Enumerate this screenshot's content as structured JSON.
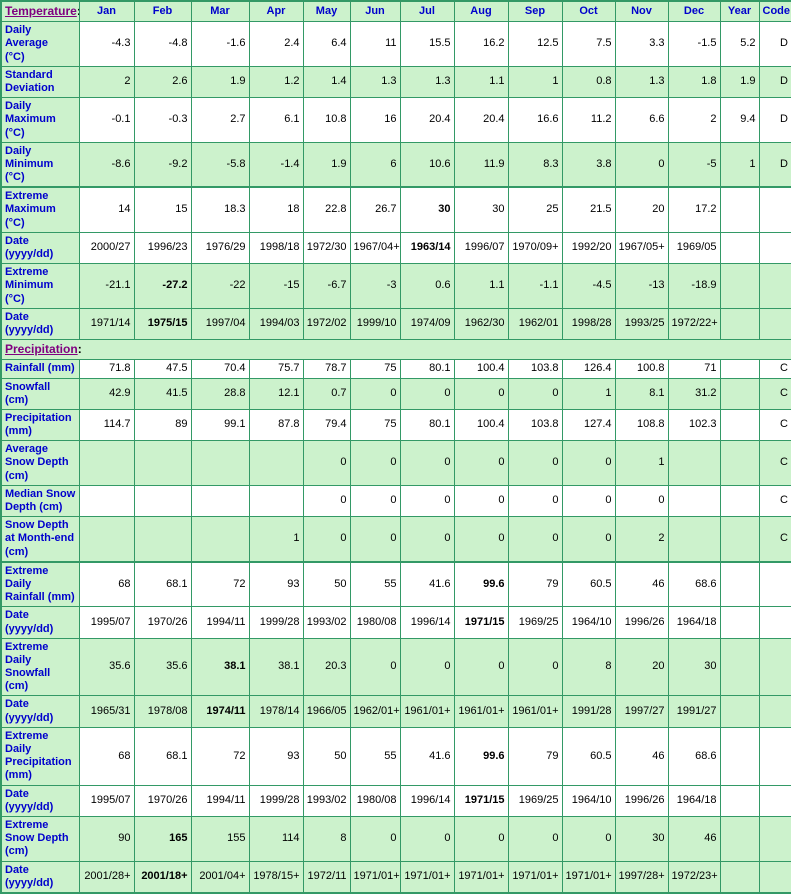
{
  "colors": {
    "table_border_green": "#339966",
    "row_green": "#ccf2cc",
    "label_blue": "#0000cc",
    "section_purple": "#800080",
    "data_text": "#000000"
  },
  "table": {
    "temperature_section_label": "Temperature",
    "precipitation_section_label": "Precipitation",
    "section_colon": ":",
    "month_headers": [
      "Jan",
      "Feb",
      "Mar",
      "Apr",
      "May",
      "Jun",
      "Jul",
      "Aug",
      "Sep",
      "Oct",
      "Nov",
      "Dec"
    ],
    "year_header": "Year",
    "code_header": "Code",
    "rows": [
      {
        "id": "daily-average",
        "label": "Daily Average\n(°C)",
        "bg": "w",
        "bold": -1,
        "thick": false,
        "values": [
          "-4.3",
          "-4.8",
          "-1.6",
          "2.4",
          "6.4",
          "11",
          "15.5",
          "16.2",
          "12.5",
          "7.5",
          "3.3",
          "-1.5",
          "5.2",
          "D"
        ]
      },
      {
        "id": "standard-deviation",
        "label": "Standard\nDeviation",
        "bg": "g",
        "bold": -1,
        "thick": false,
        "values": [
          "2",
          "2.6",
          "1.9",
          "1.2",
          "1.4",
          "1.3",
          "1.3",
          "1.1",
          "1",
          "0.8",
          "1.3",
          "1.8",
          "1.9",
          "D"
        ]
      },
      {
        "id": "daily-maximum",
        "label": "Daily\nMaximum\n(°C)",
        "bg": "w",
        "bold": -1,
        "thick": false,
        "values": [
          "-0.1",
          "-0.3",
          "2.7",
          "6.1",
          "10.8",
          "16",
          "20.4",
          "20.4",
          "16.6",
          "11.2",
          "6.6",
          "2",
          "9.4",
          "D"
        ]
      },
      {
        "id": "daily-minimum",
        "label": "Daily\nMinimum\n(°C)",
        "bg": "g",
        "bold": -1,
        "thick": false,
        "values": [
          "-8.6",
          "-9.2",
          "-5.8",
          "-1.4",
          "1.9",
          "6",
          "10.6",
          "11.9",
          "8.3",
          "3.8",
          "0",
          "-5",
          "1",
          "D"
        ]
      },
      {
        "id": "extreme-maximum",
        "label": "Extreme\nMaximum\n(°C)",
        "bg": "w",
        "bold": 6,
        "thick": true,
        "values": [
          "14",
          "15",
          "18.3",
          "18",
          "22.8",
          "26.7",
          "30",
          "30",
          "25",
          "21.5",
          "20",
          "17.2",
          "",
          ""
        ]
      },
      {
        "id": "extreme-maximum-date",
        "label": "Date\n(yyyy/dd)",
        "bg": "w",
        "bold": 6,
        "thick": false,
        "values": [
          "2000/27",
          "1996/23",
          "1976/29",
          "1998/18",
          "1972/30",
          "1967/04+",
          "1963/14",
          "1996/07",
          "1970/09+",
          "1992/20",
          "1967/05+",
          "1969/05",
          "",
          ""
        ]
      },
      {
        "id": "extreme-minimum",
        "label": "Extreme\nMinimum\n(°C)",
        "bg": "g",
        "bold": 1,
        "thick": false,
        "values": [
          "-21.1",
          "-27.2",
          "-22",
          "-15",
          "-6.7",
          "-3",
          "0.6",
          "1.1",
          "-1.1",
          "-4.5",
          "-13",
          "-18.9",
          "",
          ""
        ]
      },
      {
        "id": "extreme-minimum-date",
        "label": "Date\n(yyyy/dd)",
        "bg": "g",
        "bold": 1,
        "thick": false,
        "values": [
          "1971/14",
          "1975/15",
          "1997/04",
          "1994/03",
          "1972/02",
          "1999/10",
          "1974/09",
          "1962/30",
          "1962/01",
          "1998/28",
          "1993/25",
          "1972/22+",
          "",
          ""
        ]
      },
      {
        "id": "precipitation-section",
        "type": "section"
      },
      {
        "id": "rainfall",
        "label": "Rainfall (mm)",
        "bg": "w",
        "bold": -1,
        "thick": false,
        "values": [
          "71.8",
          "47.5",
          "70.4",
          "75.7",
          "78.7",
          "75",
          "80.1",
          "100.4",
          "103.8",
          "126.4",
          "100.8",
          "71",
          "",
          "C"
        ]
      },
      {
        "id": "snowfall",
        "label": "Snowfall\n(cm)",
        "bg": "g",
        "bold": -1,
        "thick": false,
        "values": [
          "42.9",
          "41.5",
          "28.8",
          "12.1",
          "0.7",
          "0",
          "0",
          "0",
          "0",
          "1",
          "8.1",
          "31.2",
          "",
          "C"
        ]
      },
      {
        "id": "precipitation",
        "label": "Precipitation\n(mm)",
        "bg": "w",
        "bold": -1,
        "thick": false,
        "values": [
          "114.7",
          "89",
          "99.1",
          "87.8",
          "79.4",
          "75",
          "80.1",
          "100.4",
          "103.8",
          "127.4",
          "108.8",
          "102.3",
          "",
          "C"
        ]
      },
      {
        "id": "average-snow-depth",
        "label": "Average\nSnow Depth\n(cm)",
        "bg": "g",
        "bold": -1,
        "thick": false,
        "values": [
          "",
          "",
          "",
          "",
          "0",
          "0",
          "0",
          "0",
          "0",
          "0",
          "1",
          "",
          "",
          "C"
        ]
      },
      {
        "id": "median-snow-depth",
        "label": "Median Snow\nDepth (cm)",
        "bg": "w",
        "bold": -1,
        "thick": false,
        "values": [
          "",
          "",
          "",
          "",
          "0",
          "0",
          "0",
          "0",
          "0",
          "0",
          "0",
          "",
          "",
          "C"
        ]
      },
      {
        "id": "snow-depth-at-month-end",
        "label": "Snow Depth\nat Month-end\n(cm)",
        "bg": "g",
        "bold": -1,
        "thick": false,
        "values": [
          "",
          "",
          "",
          "1",
          "0",
          "0",
          "0",
          "0",
          "0",
          "0",
          "2",
          "",
          "",
          "C"
        ]
      },
      {
        "id": "extreme-daily-rainfall",
        "label": "Extreme Daily\nRainfall (mm)",
        "bg": "w",
        "bold": 7,
        "thick": true,
        "values": [
          "68",
          "68.1",
          "72",
          "93",
          "50",
          "55",
          "41.6",
          "99.6",
          "79",
          "60.5",
          "46",
          "68.6",
          "",
          ""
        ]
      },
      {
        "id": "extreme-daily-rainfall-date",
        "label": "Date\n(yyyy/dd)",
        "bg": "w",
        "bold": 7,
        "thick": false,
        "values": [
          "1995/07",
          "1970/26",
          "1994/11",
          "1999/28",
          "1993/02",
          "1980/08",
          "1996/14",
          "1971/15",
          "1969/25",
          "1964/10",
          "1996/26",
          "1964/18",
          "",
          ""
        ]
      },
      {
        "id": "extreme-daily-snowfall",
        "label": "Extreme Daily\nSnowfall\n(cm)",
        "bg": "g",
        "bold": 2,
        "thick": false,
        "values": [
          "35.6",
          "35.6",
          "38.1",
          "38.1",
          "20.3",
          "0",
          "0",
          "0",
          "0",
          "8",
          "20",
          "30",
          "",
          ""
        ]
      },
      {
        "id": "extreme-daily-snowfall-date",
        "label": "Date\n(yyyy/dd)",
        "bg": "g",
        "bold": 2,
        "thick": false,
        "values": [
          "1965/31",
          "1978/08",
          "1974/11",
          "1978/14",
          "1966/05",
          "1962/01+",
          "1961/01+",
          "1961/01+",
          "1961/01+",
          "1991/28",
          "1997/27",
          "1991/27",
          "",
          ""
        ]
      },
      {
        "id": "extreme-daily-precipitation",
        "label": "Extreme Daily\nPrecipitation\n(mm)",
        "bg": "w",
        "bold": 7,
        "thick": false,
        "values": [
          "68",
          "68.1",
          "72",
          "93",
          "50",
          "55",
          "41.6",
          "99.6",
          "79",
          "60.5",
          "46",
          "68.6",
          "",
          ""
        ]
      },
      {
        "id": "extreme-daily-precipitation-date",
        "label": "Date\n(yyyy/dd)",
        "bg": "w",
        "bold": 7,
        "thick": false,
        "values": [
          "1995/07",
          "1970/26",
          "1994/11",
          "1999/28",
          "1993/02",
          "1980/08",
          "1996/14",
          "1971/15",
          "1969/25",
          "1964/10",
          "1996/26",
          "1964/18",
          "",
          ""
        ]
      },
      {
        "id": "extreme-snow-depth",
        "label": "Extreme\nSnow Depth\n(cm)",
        "bg": "g",
        "bold": 1,
        "thick": false,
        "values": [
          "90",
          "165",
          "155",
          "114",
          "8",
          "0",
          "0",
          "0",
          "0",
          "0",
          "30",
          "46",
          "",
          ""
        ]
      },
      {
        "id": "extreme-snow-depth-date",
        "label": "Date\n(yyyy/dd)",
        "bg": "g",
        "bold": 1,
        "thick": false,
        "values": [
          "2001/28+",
          "2001/18+",
          "2001/04+",
          "1978/15+",
          "1972/11",
          "1971/01+",
          "1971/01+",
          "1971/01+",
          "1971/01+",
          "1971/01+",
          "1997/28+",
          "1972/23+",
          "",
          ""
        ]
      }
    ]
  }
}
